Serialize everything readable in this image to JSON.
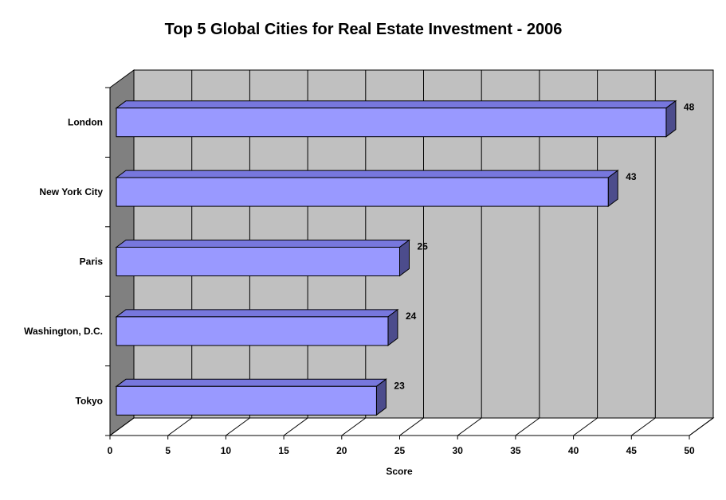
{
  "chart_data": {
    "type": "bar",
    "orientation": "horizontal",
    "title": "Top 5 Global Cities for Real Estate Investment - 2006",
    "xlabel": "Score",
    "ylabel": "",
    "categories": [
      "London",
      "New York City",
      "Paris",
      "Washington, D.C.",
      "Tokyo"
    ],
    "values": [
      48,
      43,
      25,
      24,
      23
    ],
    "xlim": [
      0,
      50
    ],
    "xticks": [
      0,
      5,
      10,
      15,
      20,
      25,
      30,
      35,
      40,
      45,
      50
    ],
    "grid": true,
    "legend": "none",
    "style": "3d",
    "colors": {
      "bar_front": "#9999ff",
      "bar_top": "#7777dd",
      "bar_side": "#4c4c8c",
      "plot_wall": "#c0c0c0",
      "side_wall": "#808080",
      "floor": "#ffffff",
      "gridline": "#000000"
    }
  }
}
